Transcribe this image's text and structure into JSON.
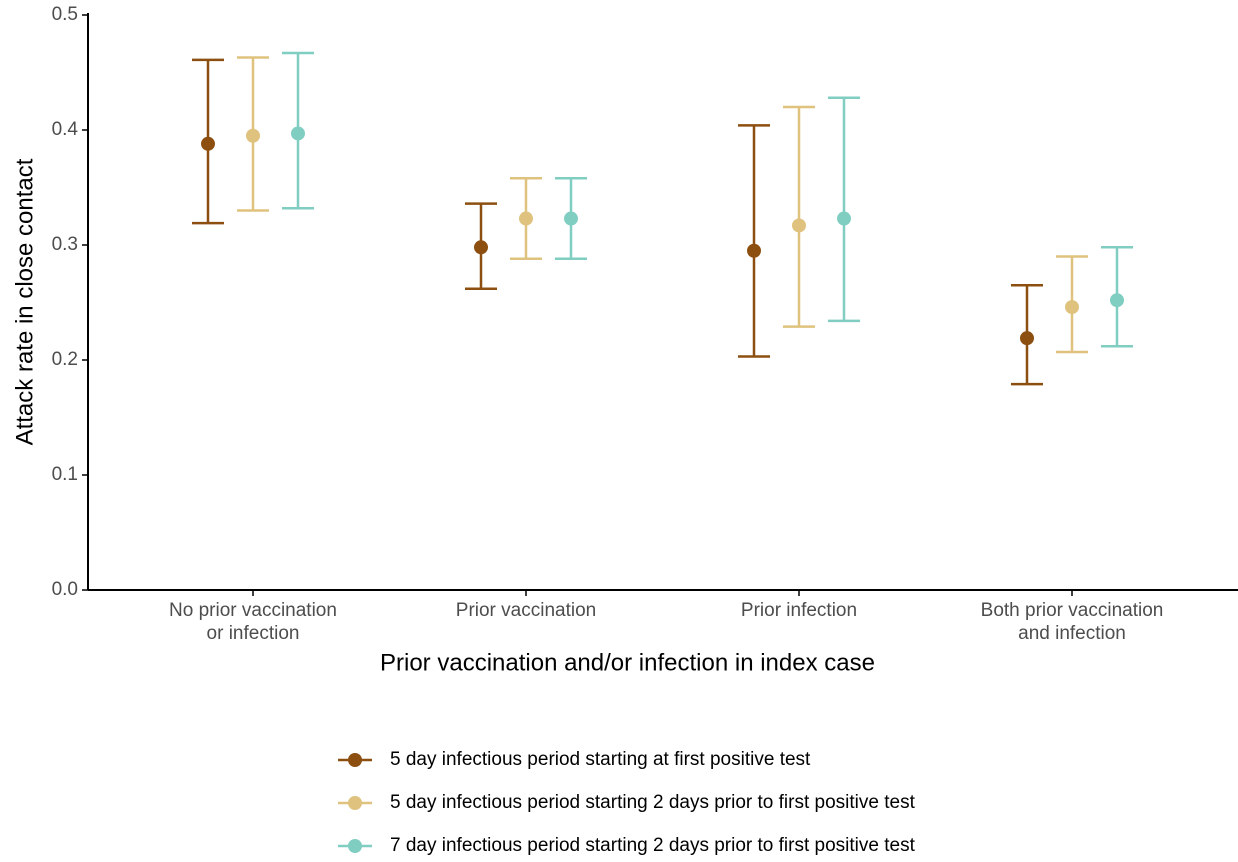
{
  "chart_data": {
    "type": "errorbar",
    "x_label": "Prior vaccination and/or infection in index case",
    "y_label": "Attack rate in close contact",
    "categories": [
      "No prior vaccination\nor infection",
      "Prior vaccination",
      "Prior infection",
      "Both prior vaccination\nand infection"
    ],
    "ylim": [
      0,
      0.5
    ],
    "yticks": [
      {
        "value": 0,
        "label": "0.0"
      },
      0.1,
      0.2,
      0.3,
      0.4,
      0.5
    ],
    "legend": "bottom",
    "series": [
      {
        "name": "5 day infectious period starting at first positive test",
        "color": "#8c4f10",
        "values": [
          0.388,
          0.298,
          0.295,
          0.219
        ],
        "lower": [
          0.319,
          0.262,
          0.203,
          0.179
        ],
        "upper": [
          0.461,
          0.336,
          0.404,
          0.265
        ]
      },
      {
        "name": "5 day infectious period starting 2 days prior to first positive test",
        "color": "#dfc27d",
        "values": [
          0.395,
          0.323,
          0.317,
          0.246
        ],
        "lower": [
          0.33,
          0.288,
          0.229,
          0.207
        ],
        "upper": [
          0.463,
          0.358,
          0.42,
          0.29
        ]
      },
      {
        "name": "7 day infectious period starting 2 days prior to first positive test",
        "color": "#80cdc1",
        "values": [
          0.397,
          0.323,
          0.323,
          0.252
        ],
        "lower": [
          0.332,
          0.288,
          0.234,
          0.212
        ],
        "upper": [
          0.467,
          0.358,
          0.428,
          0.298
        ]
      }
    ]
  }
}
